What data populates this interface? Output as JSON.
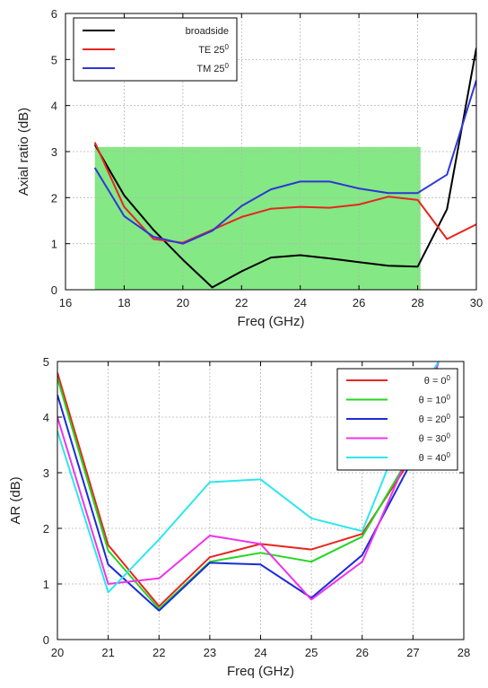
{
  "chart_data": [
    {
      "type": "line",
      "xlabel": "Freq (GHz)",
      "ylabel": "Axial ratio (dB)",
      "xlim": [
        16,
        30
      ],
      "ylim": [
        0,
        6
      ],
      "xticks": [
        16,
        18,
        20,
        22,
        24,
        26,
        28,
        30
      ],
      "yticks": [
        0,
        1,
        2,
        3,
        4,
        5,
        6
      ],
      "grid": true,
      "legend_position": "top-left",
      "shaded_region": {
        "x": [
          17,
          28.1
        ],
        "y": [
          0,
          3.1
        ],
        "color": "#84e884"
      },
      "series": [
        {
          "name": "broadside",
          "color": "#000000",
          "x": [
            17,
            18,
            19,
            20,
            21,
            22,
            23,
            24,
            25,
            26,
            27,
            28,
            29,
            30
          ],
          "values": [
            3.15,
            2.05,
            1.3,
            0.65,
            0.05,
            0.4,
            0.7,
            0.75,
            0.68,
            0.6,
            0.52,
            0.5,
            1.75,
            5.25
          ]
        },
        {
          "name": "TE 25",
          "name_sup": "0",
          "color": "#e8251f",
          "x": [
            17,
            18,
            19,
            20,
            21,
            22,
            23,
            24,
            25,
            26,
            27,
            28,
            29,
            30
          ],
          "values": [
            3.2,
            1.8,
            1.1,
            1.02,
            1.3,
            1.58,
            1.76,
            1.8,
            1.78,
            1.85,
            2.02,
            1.95,
            1.1,
            1.42
          ]
        },
        {
          "name": "TM 25",
          "name_sup": "0",
          "color": "#2f36d6",
          "x": [
            17,
            18,
            19,
            20,
            21,
            22,
            23,
            24,
            25,
            26,
            27,
            28,
            29,
            30
          ],
          "values": [
            2.65,
            1.6,
            1.15,
            1.0,
            1.28,
            1.82,
            2.18,
            2.35,
            2.35,
            2.2,
            2.1,
            2.1,
            2.5,
            4.55
          ]
        }
      ]
    },
    {
      "type": "line",
      "xlabel": "Freq (GHz)",
      "ylabel": "AR (dB)",
      "xlim": [
        20,
        28
      ],
      "ylim": [
        0,
        5
      ],
      "xticks": [
        20,
        21,
        22,
        23,
        24,
        25,
        26,
        27,
        28
      ],
      "yticks": [
        0,
        1,
        2,
        3,
        4,
        5
      ],
      "grid": true,
      "legend_position": "top-right",
      "series": [
        {
          "name": "θ = 0",
          "name_sup": "0",
          "color": "#e8251f",
          "x": [
            20,
            21,
            22,
            23,
            24,
            25,
            26,
            27,
            27.5
          ],
          "values": [
            4.8,
            1.7,
            0.6,
            1.48,
            1.72,
            1.62,
            1.9,
            3.3,
            5.0
          ]
        },
        {
          "name": "θ = 10",
          "name_sup": "0",
          "color": "#22d622",
          "x": [
            20,
            21,
            22,
            23,
            24,
            25,
            26,
            27,
            27.5
          ],
          "values": [
            4.7,
            1.6,
            0.55,
            1.4,
            1.56,
            1.4,
            1.85,
            3.4,
            5.0
          ]
        },
        {
          "name": "θ = 20",
          "name_sup": "0",
          "color": "#1b2bd8",
          "x": [
            20,
            21,
            22,
            23,
            24,
            25,
            26,
            27,
            27.5
          ],
          "values": [
            4.4,
            1.35,
            0.52,
            1.38,
            1.35,
            0.75,
            1.52,
            3.25,
            5.0
          ]
        },
        {
          "name": "θ = 30",
          "name_sup": "0",
          "color": "#ee33ee",
          "x": [
            20,
            21,
            22,
            23,
            24,
            25,
            26,
            27,
            27.5
          ],
          "values": [
            4.0,
            1.0,
            1.1,
            1.87,
            1.72,
            0.72,
            1.4,
            3.5,
            5.0
          ]
        },
        {
          "name": "θ = 40",
          "name_sup": "0",
          "color": "#2ee6ee",
          "x": [
            20,
            21,
            22,
            23,
            24,
            25,
            26,
            27,
            27.5
          ],
          "values": [
            3.75,
            0.85,
            1.8,
            2.83,
            2.88,
            2.18,
            1.95,
            4.2,
            5.0
          ]
        }
      ]
    }
  ]
}
